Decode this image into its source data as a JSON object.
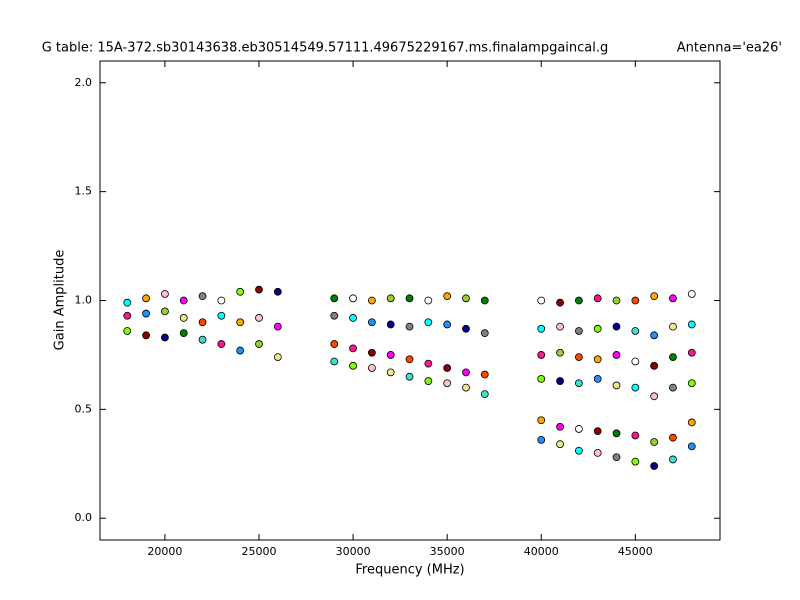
{
  "chart_data": {
    "type": "scatter",
    "title": "G table: 15A-372.sb30143638.eb30514549.57111.49675229167.ms.finalampgaincal.g",
    "annotation": "Antenna='ea26'",
    "x_label": "Frequency (MHz)",
    "y_label": "Gain Amplitude",
    "xlim": [
      16550,
      49500
    ],
    "ylim": [
      -0.1,
      2.1
    ],
    "xticks": [
      20000,
      25000,
      30000,
      35000,
      40000,
      45000
    ],
    "yticks": [
      {
        "value": 0,
        "label": "0.0"
      },
      0.5,
      {
        "value": 1,
        "label": "1.0"
      },
      1.5,
      {
        "value": 2,
        "label": "2.0"
      }
    ],
    "grid": false,
    "palette": [
      "#00ffff",
      "#ff1493",
      "#7fff00",
      "#ffa500",
      "#1e90ff",
      "#8b0000",
      "#ffc0cb",
      "#9acd32",
      "#000080",
      "#ff00ff",
      "#f0e68c",
      "#008000",
      "#808080",
      "#ff4500",
      "#40e0d0",
      "#ffffff"
    ],
    "x": [
      18000,
      18000,
      18000,
      19000,
      19000,
      19000,
      20000,
      20000,
      20000,
      21000,
      21000,
      21000,
      22000,
      22000,
      22000,
      23000,
      23000,
      23000,
      24000,
      24000,
      24000,
      25000,
      25000,
      25000,
      26000,
      26000,
      26000,
      29000,
      29000,
      29000,
      29000,
      30000,
      30000,
      30000,
      30000,
      31000,
      31000,
      31000,
      31000,
      32000,
      32000,
      32000,
      32000,
      33000,
      33000,
      33000,
      33000,
      34000,
      34000,
      34000,
      34000,
      35000,
      35000,
      35000,
      35000,
      36000,
      36000,
      36000,
      36000,
      37000,
      37000,
      37000,
      37000,
      40000,
      40000,
      40000,
      40000,
      40000,
      40000,
      41000,
      41000,
      41000,
      41000,
      41000,
      41000,
      42000,
      42000,
      42000,
      42000,
      42000,
      42000,
      43000,
      43000,
      43000,
      43000,
      43000,
      43000,
      44000,
      44000,
      44000,
      44000,
      44000,
      44000,
      45000,
      45000,
      45000,
      45000,
      45000,
      45000,
      46000,
      46000,
      46000,
      46000,
      46000,
      46000,
      47000,
      47000,
      47000,
      47000,
      47000,
      47000,
      48000,
      48000,
      48000,
      48000,
      48000,
      48000
    ],
    "values": [
      0.99,
      0.93,
      0.86,
      1.01,
      0.94,
      0.84,
      1.03,
      0.95,
      0.83,
      1.0,
      0.92,
      0.85,
      1.02,
      0.9,
      0.82,
      1.0,
      0.93,
      0.8,
      1.04,
      0.9,
      0.77,
      1.05,
      0.92,
      0.8,
      1.04,
      0.88,
      0.74,
      1.01,
      0.93,
      0.8,
      0.72,
      1.01,
      0.92,
      0.78,
      0.7,
      1.0,
      0.9,
      0.76,
      0.69,
      1.01,
      0.89,
      0.75,
      0.67,
      1.01,
      0.88,
      0.73,
      0.65,
      1.0,
      0.9,
      0.71,
      0.63,
      1.02,
      0.89,
      0.69,
      0.62,
      1.01,
      0.87,
      0.67,
      0.6,
      1.0,
      0.85,
      0.66,
      0.57,
      1.0,
      0.87,
      0.75,
      0.64,
      0.45,
      0.36,
      0.99,
      0.88,
      0.76,
      0.63,
      0.42,
      0.34,
      1.0,
      0.86,
      0.74,
      0.62,
      0.41,
      0.31,
      1.01,
      0.87,
      0.73,
      0.64,
      0.4,
      0.3,
      1.0,
      0.88,
      0.75,
      0.61,
      0.39,
      0.28,
      1.0,
      0.86,
      0.72,
      0.6,
      0.38,
      0.26,
      1.02,
      0.84,
      0.7,
      0.56,
      0.35,
      0.24,
      1.01,
      0.88,
      0.74,
      0.6,
      0.37,
      0.27,
      1.03,
      0.89,
      0.76,
      0.62,
      0.44,
      0.33
    ]
  }
}
